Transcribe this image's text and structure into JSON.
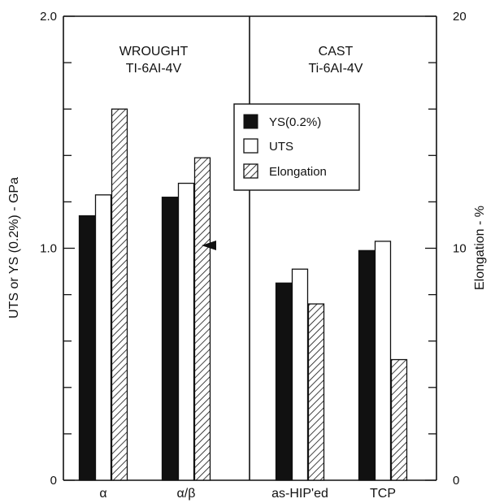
{
  "chart_data": {
    "type": "bar",
    "categories": [
      "α",
      "α/β",
      "as-HIP'ed",
      "TCP"
    ],
    "groups": [
      {
        "label_line1": "WROUGHT",
        "label_line2": "TI-6AI-4V",
        "categories": [
          "α",
          "α/β"
        ]
      },
      {
        "label_line1": "CAST",
        "label_line2": "Ti-6AI-4V",
        "categories": [
          "as-HIP'ed",
          "TCP"
        ]
      }
    ],
    "series": [
      {
        "name": "YS(0.2%)",
        "axis": "left",
        "pattern": "solid",
        "color": "#111111",
        "values": [
          1.14,
          1.22,
          0.85,
          0.99
        ]
      },
      {
        "name": "UTS",
        "axis": "left",
        "pattern": "open",
        "color": "#ffffff",
        "values": [
          1.23,
          1.28,
          0.91,
          1.03
        ]
      },
      {
        "name": "Elongation",
        "axis": "right",
        "pattern": "hatched",
        "color": "#ffffff",
        "values": [
          16.0,
          13.9,
          7.6,
          5.2
        ]
      }
    ],
    "ylabel": "UTS or YS (0.2%) - GPa",
    "y2label": "Elongation - %",
    "ylim": [
      0,
      2.0
    ],
    "y2lim": [
      0,
      20
    ],
    "yticks": [
      "0",
      "1.0",
      "2.0"
    ],
    "y2ticks": [
      "0",
      "10",
      "20"
    ],
    "legend_position": "upper-middle",
    "grid": false,
    "annotation": "arrow pointing to α/β elongation bar"
  }
}
